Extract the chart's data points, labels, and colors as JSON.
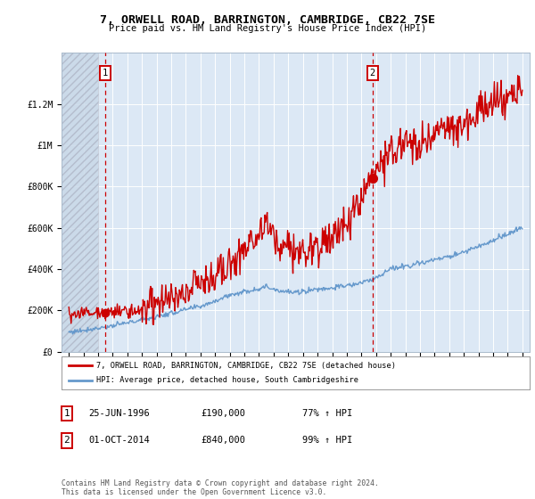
{
  "title": "7, ORWELL ROAD, BARRINGTON, CAMBRIDGE, CB22 7SE",
  "subtitle": "Price paid vs. HM Land Registry's House Price Index (HPI)",
  "legend_line1": "7, ORWELL ROAD, BARRINGTON, CAMBRIDGE, CB22 7SE (detached house)",
  "legend_line2": "HPI: Average price, detached house, South Cambridgeshire",
  "annotation1_label": "1",
  "annotation1_date": "25-JUN-1996",
  "annotation1_price": "£190,000",
  "annotation1_hpi": "77% ↑ HPI",
  "annotation2_label": "2",
  "annotation2_date": "01-OCT-2014",
  "annotation2_price": "£840,000",
  "annotation2_hpi": "99% ↑ HPI",
  "footnote": "Contains HM Land Registry data © Crown copyright and database right 2024.\nThis data is licensed under the Open Government Licence v3.0.",
  "red_color": "#cc0000",
  "blue_color": "#6699cc",
  "background_color": "#dce8f5",
  "point1_x": 1996.49,
  "point1_y": 190000,
  "point2_x": 2014.75,
  "point2_y": 840000,
  "xlim": [
    1993.5,
    2025.5
  ],
  "ylim": [
    0,
    1450000
  ],
  "yticks": [
    0,
    200000,
    400000,
    600000,
    800000,
    1000000,
    1200000
  ],
  "ytick_labels": [
    "£0",
    "£200K",
    "£400K",
    "£600K",
    "£800K",
    "£1M",
    "£1.2M"
  ],
  "xticks": [
    1994,
    1995,
    1996,
    1997,
    1998,
    1999,
    2000,
    2001,
    2002,
    2003,
    2004,
    2005,
    2006,
    2007,
    2008,
    2009,
    2010,
    2011,
    2012,
    2013,
    2014,
    2015,
    2016,
    2017,
    2018,
    2019,
    2020,
    2021,
    2022,
    2023,
    2024,
    2025
  ],
  "hatch_end_x": 1996.0
}
